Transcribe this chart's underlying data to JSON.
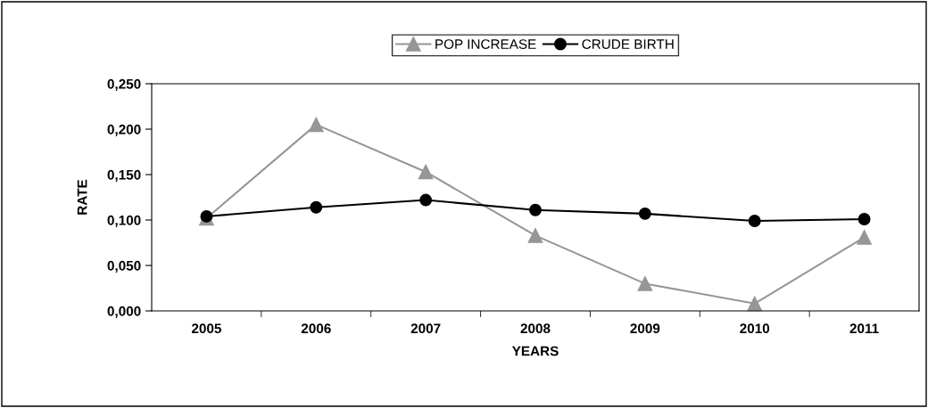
{
  "chart_data": {
    "type": "line",
    "xlabel": "YEARS",
    "ylabel": "RATE",
    "categories": [
      "2005",
      "2006",
      "2007",
      "2008",
      "2009",
      "2010",
      "2011"
    ],
    "series": [
      {
        "name": "POP INCREASE",
        "color": "#969696",
        "marker": "triangle",
        "values": [
          0.102,
          0.205,
          0.153,
          0.083,
          0.03,
          0.008,
          0.081
        ]
      },
      {
        "name": "CRUDE BIRTH",
        "color": "#000000",
        "marker": "circle",
        "values": [
          0.104,
          0.114,
          0.122,
          0.111,
          0.107,
          0.099,
          0.101
        ]
      }
    ],
    "ylim": [
      0,
      0.25
    ],
    "yticks": [
      {
        "value": 0,
        "label": "0,000"
      },
      {
        "value": 0.05,
        "label": "0,050"
      },
      {
        "value": 0.1,
        "label": "0,100"
      },
      {
        "value": 0.15,
        "label": "0,150"
      },
      {
        "value": 0.2,
        "label": "0,200"
      },
      {
        "value": 0.25,
        "label": "0,250"
      }
    ],
    "grid": false,
    "legend": "top",
    "line_style": "solid"
  }
}
